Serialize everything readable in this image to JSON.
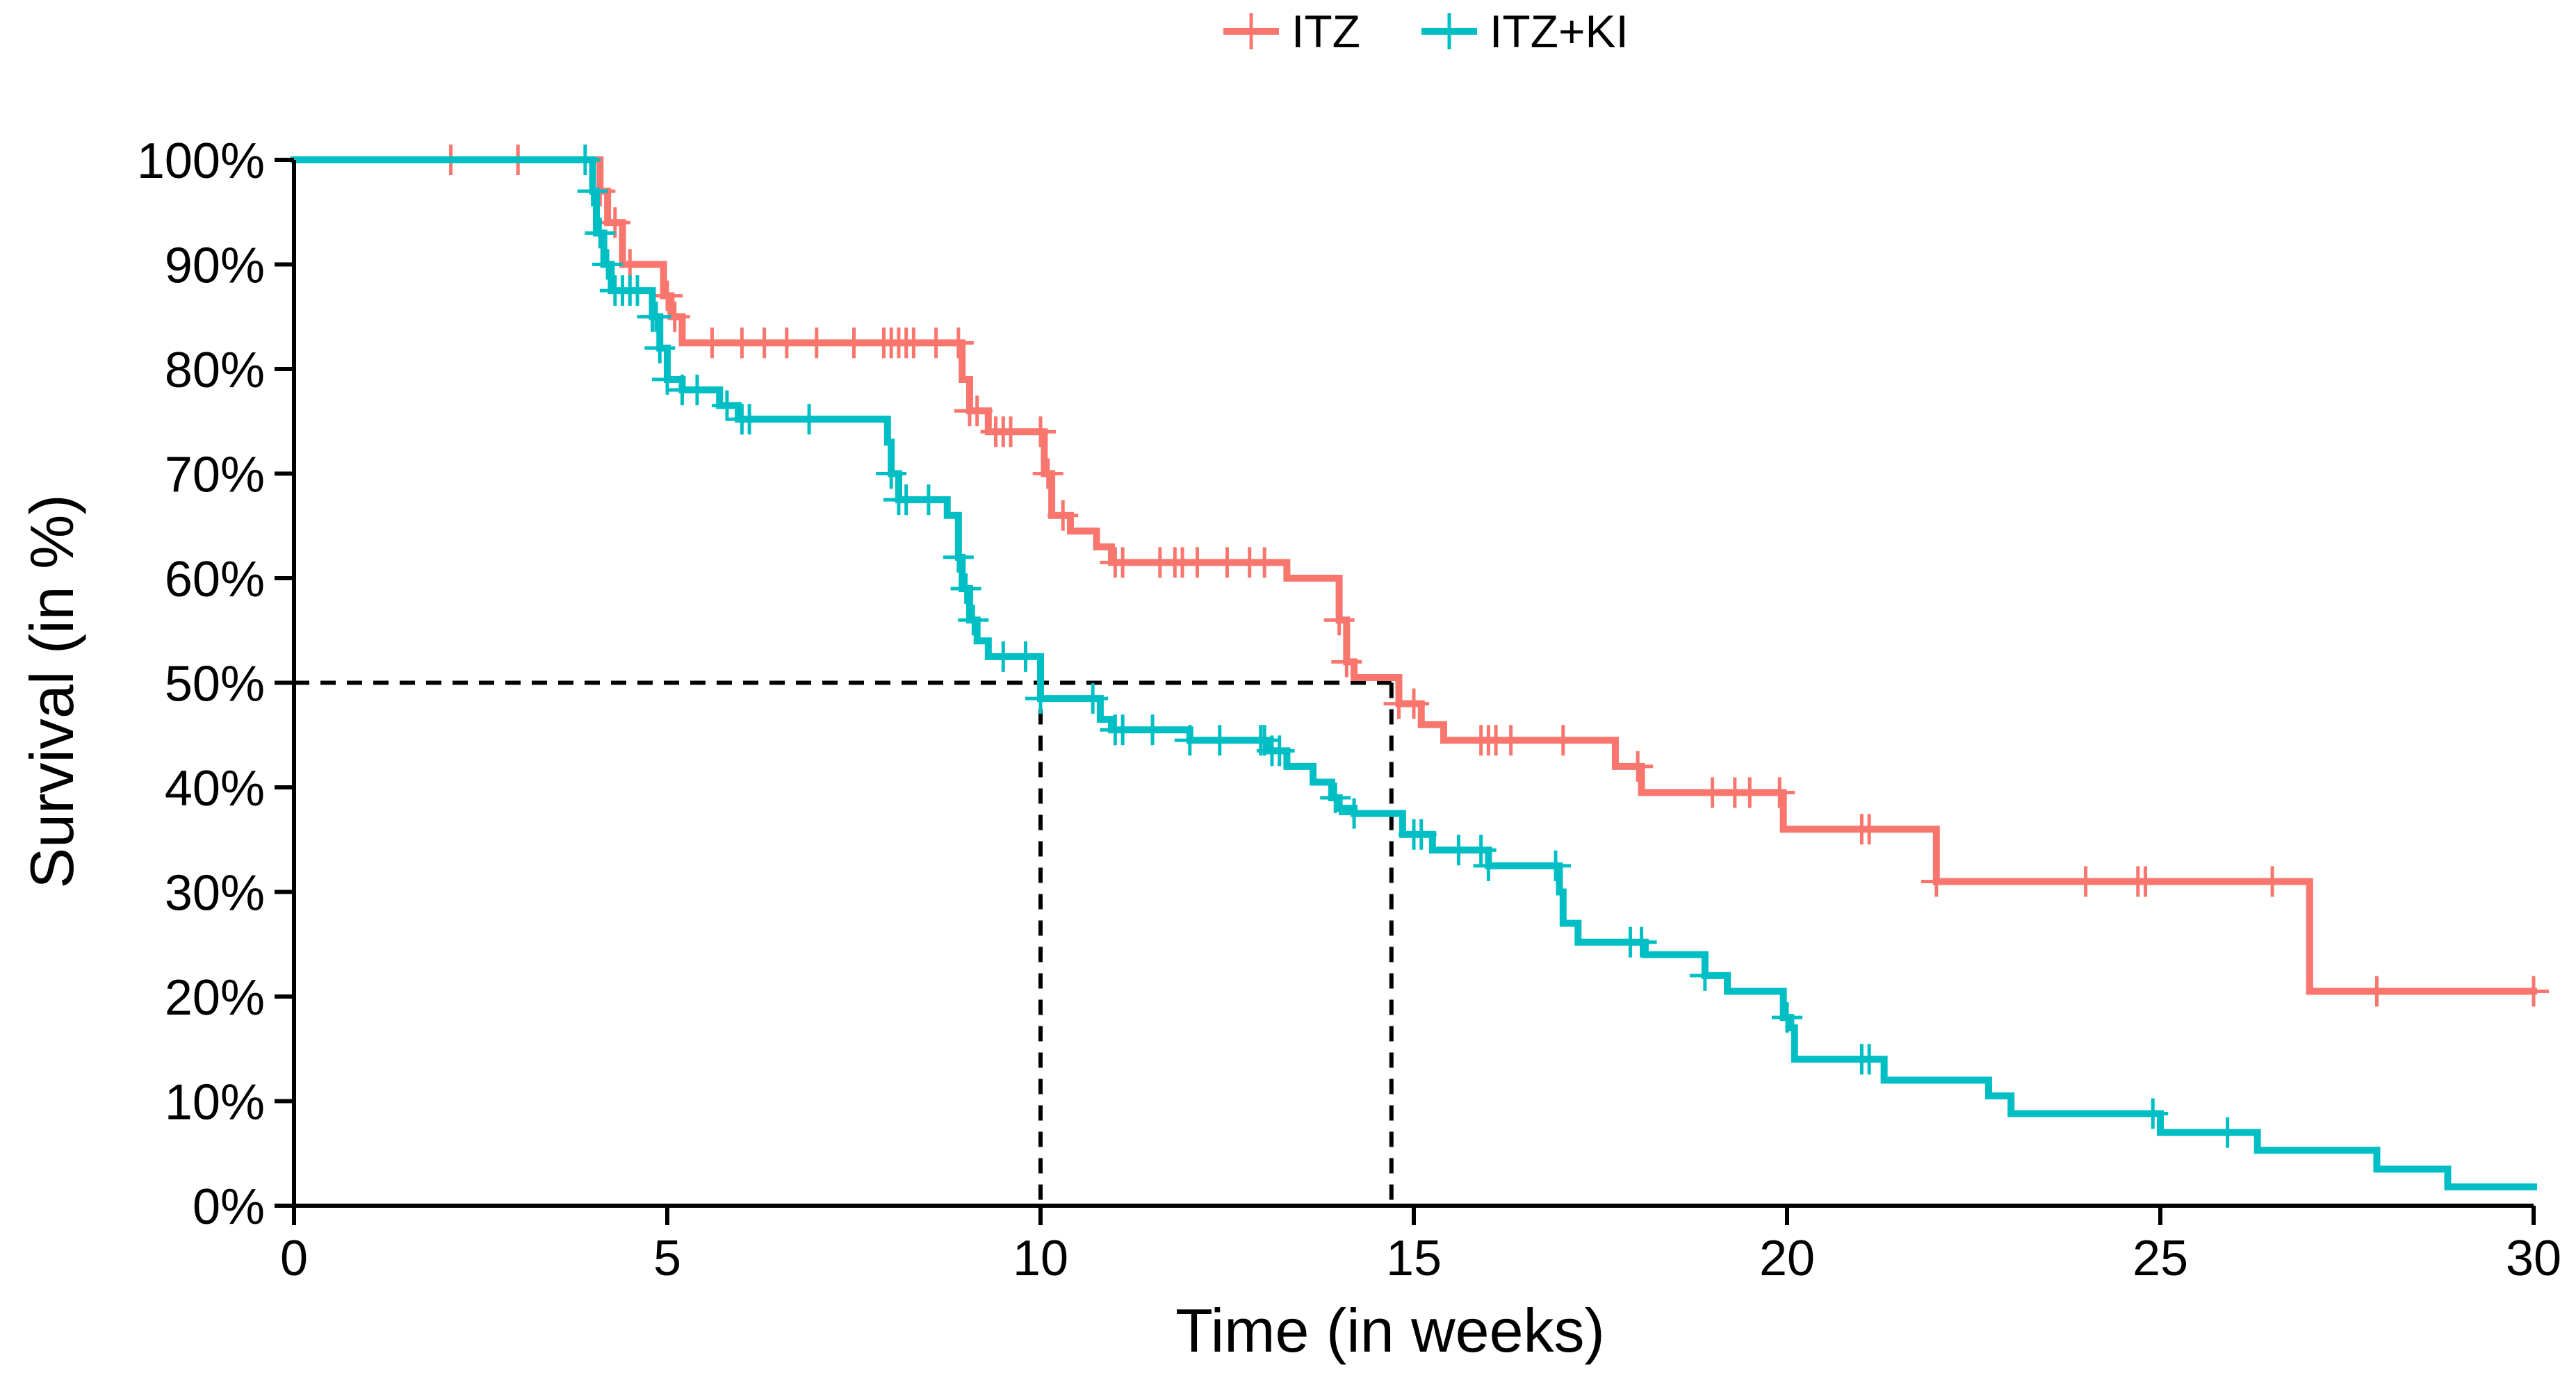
{
  "chart_data": {
    "type": "line",
    "subtype": "kaplan-meier",
    "title": "",
    "xlabel": "Time (in weeks)",
    "ylabel": "Survival (in %)",
    "xlim": [
      0,
      30
    ],
    "ylim": [
      0,
      100
    ],
    "xticks": [
      "0",
      "5",
      "10",
      "15",
      "20",
      "25",
      "30"
    ],
    "yticks": [
      "0%",
      "10%",
      "20%",
      "30%",
      "40%",
      "50%",
      "60%",
      "70%",
      "80%",
      "90%",
      "100%"
    ],
    "grid": false,
    "legend_position": "top-center",
    "reference_line": {
      "y": 50,
      "median_x": [
        10.0,
        14.7
      ],
      "style": "dashed"
    },
    "series": [
      {
        "name": "ITZ",
        "color": "#F8766D",
        "steps": [
          [
            0,
            100
          ],
          [
            4.1,
            97
          ],
          [
            4.2,
            94
          ],
          [
            4.4,
            90
          ],
          [
            4.95,
            87
          ],
          [
            5.05,
            85
          ],
          [
            5.2,
            82.5
          ],
          [
            8.95,
            79
          ],
          [
            9.05,
            76
          ],
          [
            9.3,
            74
          ],
          [
            10.05,
            70
          ],
          [
            10.15,
            66
          ],
          [
            10.4,
            64.5
          ],
          [
            10.75,
            63
          ],
          [
            10.95,
            61.5
          ],
          [
            13.3,
            60
          ],
          [
            14.0,
            56
          ],
          [
            14.1,
            52
          ],
          [
            14.2,
            50.5
          ],
          [
            14.8,
            48
          ],
          [
            15.1,
            46
          ],
          [
            15.4,
            44.5
          ],
          [
            17.7,
            42
          ],
          [
            18.05,
            39.5
          ],
          [
            19.95,
            36
          ],
          [
            22.0,
            31
          ],
          [
            27.0,
            20.5
          ],
          [
            30.0,
            20.5
          ]
        ],
        "censor_x": [
          2.1,
          3.0,
          4.1,
          4.3,
          4.5,
          5.0,
          5.1,
          5.6,
          6.0,
          6.3,
          6.6,
          7.0,
          7.5,
          7.9,
          8.0,
          8.1,
          8.2,
          8.3,
          8.6,
          8.9,
          9.05,
          9.15,
          9.4,
          9.5,
          9.6,
          10.0,
          10.1,
          10.3,
          11.0,
          11.1,
          11.6,
          11.8,
          11.9,
          12.1,
          12.5,
          12.8,
          13.0,
          14.0,
          14.1,
          14.8,
          15.0,
          15.9,
          16.0,
          16.1,
          16.3,
          17.0,
          18.0,
          19.0,
          19.3,
          19.5,
          19.9,
          21.0,
          21.1,
          22.0,
          24.0,
          24.7,
          24.8,
          26.5,
          27.9,
          30.0
        ]
      },
      {
        "name": "ITZ+KI",
        "color": "#00BFC4",
        "steps": [
          [
            0,
            100
          ],
          [
            4.0,
            97
          ],
          [
            4.05,
            93
          ],
          [
            4.15,
            90
          ],
          [
            4.25,
            87.5
          ],
          [
            4.8,
            85
          ],
          [
            4.9,
            82
          ],
          [
            5.0,
            79
          ],
          [
            5.2,
            78
          ],
          [
            5.7,
            76.5
          ],
          [
            5.95,
            75.2
          ],
          [
            7.95,
            73
          ],
          [
            8.0,
            70
          ],
          [
            8.1,
            67.5
          ],
          [
            8.75,
            66
          ],
          [
            8.9,
            62
          ],
          [
            8.95,
            59
          ],
          [
            9.05,
            56
          ],
          [
            9.15,
            54
          ],
          [
            9.3,
            52.5
          ],
          [
            10.0,
            48.5
          ],
          [
            10.8,
            46.5
          ],
          [
            10.95,
            45.5
          ],
          [
            12.0,
            44.5
          ],
          [
            13.05,
            43.5
          ],
          [
            13.3,
            42
          ],
          [
            13.65,
            40.5
          ],
          [
            13.9,
            39
          ],
          [
            14.0,
            38
          ],
          [
            14.2,
            37.5
          ],
          [
            14.85,
            35.5
          ],
          [
            15.25,
            34
          ],
          [
            16.0,
            32.5
          ],
          [
            16.95,
            30
          ],
          [
            17.0,
            27
          ],
          [
            17.2,
            25.2
          ],
          [
            18.1,
            24
          ],
          [
            18.9,
            22
          ],
          [
            19.2,
            20.5
          ],
          [
            19.95,
            18
          ],
          [
            20.05,
            17
          ],
          [
            20.1,
            14
          ],
          [
            21.3,
            12
          ],
          [
            22.7,
            10.5
          ],
          [
            23.0,
            8.8
          ],
          [
            25.0,
            7
          ],
          [
            26.3,
            5.3
          ],
          [
            27.9,
            3.5
          ],
          [
            28.85,
            1.8
          ],
          [
            30.0,
            1.8
          ]
        ],
        "censor_x": [
          3.9,
          4.0,
          4.1,
          4.2,
          4.3,
          4.4,
          4.5,
          4.6,
          4.8,
          4.85,
          4.9,
          5.0,
          5.2,
          5.4,
          5.8,
          6.0,
          6.1,
          6.9,
          8.0,
          8.1,
          8.2,
          8.5,
          8.9,
          9.0,
          9.1,
          9.5,
          9.8,
          10.0,
          10.7,
          11.0,
          11.1,
          11.5,
          12.0,
          12.4,
          12.95,
          13.0,
          13.1,
          13.2,
          13.95,
          14.2,
          15.0,
          15.1,
          15.6,
          15.9,
          16.0,
          16.9,
          17.9,
          18.05,
          18.9,
          20.0,
          21.0,
          21.1,
          24.9,
          25.9
        ]
      }
    ]
  }
}
